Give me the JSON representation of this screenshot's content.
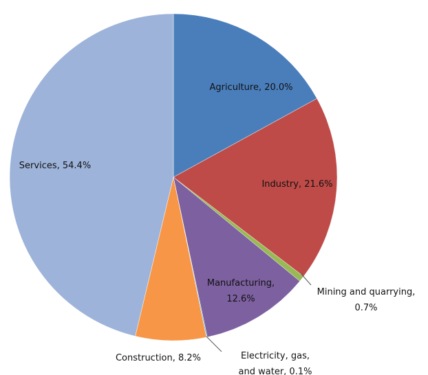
{
  "chart_data": {
    "type": "pie",
    "values": [
      20.0,
      21.6,
      0.7,
      12.6,
      0.1,
      8.2,
      54.4
    ],
    "value_labels": [
      "Agriculture, 20.0%",
      "Industry, 21.6%",
      "Mining and quarrying,\n0.7%",
      "Manufacturing,\n12.6%",
      "Electricity, gas,\nand water, 0.1%",
      "Construction, 8.2%",
      "Services, 54.4%"
    ],
    "colors": [
      "#4a7ebb",
      "#be4b48",
      "#98b954",
      "#7d60a0",
      "#4bacc6",
      "#f79646",
      "#9db3d9"
    ]
  }
}
